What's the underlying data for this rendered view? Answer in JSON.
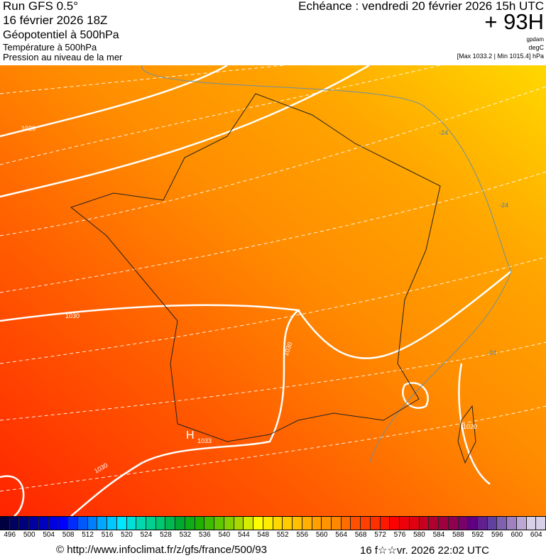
{
  "header": {
    "run": "Run GFS 0.5°",
    "run_date": "16 février 2026 18Z",
    "title": "Géopotentiel à 500hPa",
    "subtitle1": "Température à 500hPa",
    "subtitle2": "Pression au niveau de la mer",
    "echeance": "Echéance : vendredi 20 février 2026 15h UTC",
    "lead": "+ 93H",
    "unit1": "gpdam",
    "unit2": "degC",
    "pressure_range": "[Max 1033.2 | Min 1015.4] hPa"
  },
  "map": {
    "labels": {
      "p1": "1020",
      "p2": "1030",
      "p3": "1030",
      "p4": "1030",
      "p5": "1020",
      "p6": "1033",
      "h": "H",
      "t1": "-24",
      "t2": "-24",
      "t3": "-24"
    },
    "colors": {
      "yellow": "#ffd800",
      "orange": "#ffa400",
      "red_orange": "#ff5a00",
      "red": "#ff2400"
    }
  },
  "colorbar": {
    "labels": [
      "496",
      "500",
      "504",
      "508",
      "512",
      "516",
      "520",
      "524",
      "528",
      "532",
      "536",
      "540",
      "544",
      "548",
      "552",
      "556",
      "560",
      "564",
      "568",
      "572",
      "576",
      "580",
      "584",
      "588",
      "592",
      "596",
      "600",
      "604"
    ],
    "colors": [
      "#000040",
      "#00007f",
      "#0000c0",
      "#0000ff",
      "#0058ff",
      "#00a8ff",
      "#00e8ff",
      "#00d8b0",
      "#00c870",
      "#00a830",
      "#20b000",
      "#60c800",
      "#a8d800",
      "#ffff00",
      "#ffd800",
      "#ffc000",
      "#ffa000",
      "#ff8800",
      "#ff5000",
      "#ff3000",
      "#ff0000",
      "#e00010",
      "#b00030",
      "#900050",
      "#600080",
      "#6040a0",
      "#a080c0",
      "#d8d0e8"
    ]
  },
  "footer": {
    "url": "© http://www.infoclimat.fr/z/gfs/france/500/93",
    "generated": "16 f☆☆vr. 2026 22:02 UTC"
  }
}
